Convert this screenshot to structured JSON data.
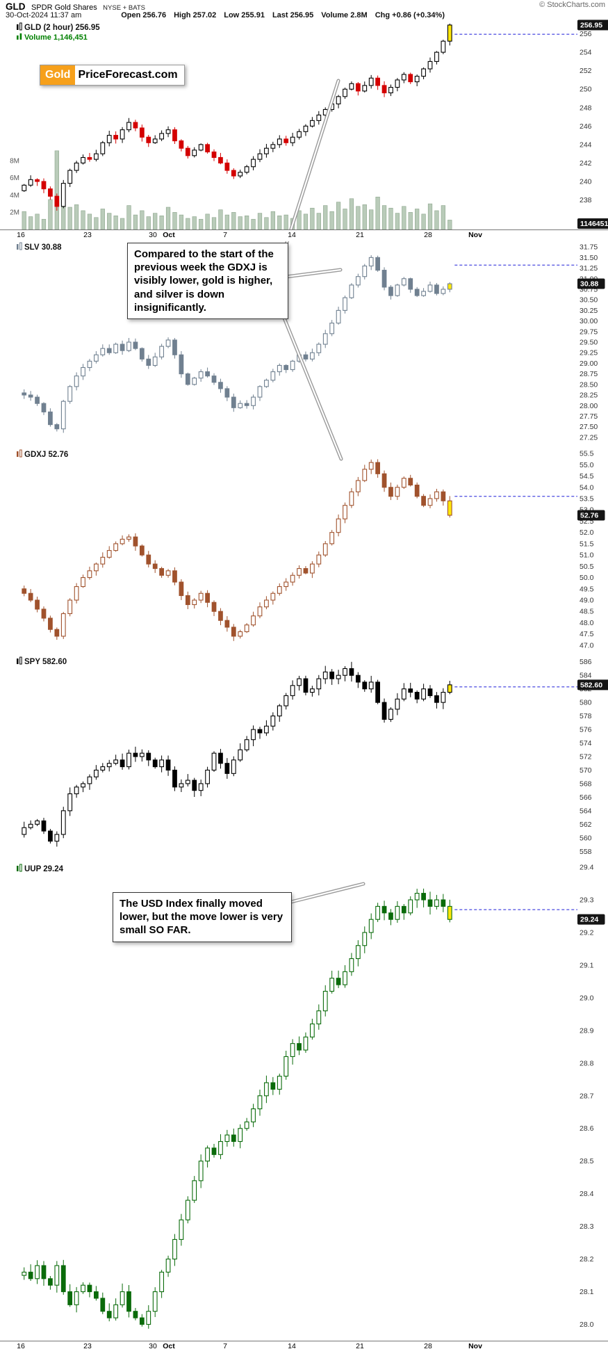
{
  "header": {
    "symbol": "GLD",
    "name": "SPDR Gold Shares",
    "exchange": "NYSE + BATS",
    "copyright": "© StockCharts.com",
    "datetime": "30-Oct-2024 11:37 am",
    "quote_fields": [
      {
        "label": "Open",
        "value": "256.76"
      },
      {
        "label": "High",
        "value": "257.02"
      },
      {
        "label": "Low",
        "value": "255.91"
      },
      {
        "label": "Last",
        "value": "256.95"
      },
      {
        "label": "Volume",
        "value": "2.8M"
      },
      {
        "label": "Chg",
        "value": "+0.86 (+0.34%)"
      }
    ]
  },
  "watermark": {
    "gold": "Gold",
    "rest": "PriceForecast.com"
  },
  "annotations": {
    "slv_note": "Compared to the start of the previous week the GDXJ is visibly lower, gold is higher, and silver is down insignificantly.",
    "uup_note": "The USD Index finally moved lower, but the move lower is very small SO FAR."
  },
  "x_axis": {
    "labels": [
      "16",
      "23",
      "30",
      "Oct",
      "7",
      "14",
      "21",
      "28",
      "Nov"
    ]
  },
  "colors": {
    "highlight": "#ffe70a",
    "dashed": "#4a4ae0",
    "label_box": "#151515",
    "volume_fill": "#b9cbb9",
    "volume_stroke": "#8ca58c",
    "volume_text": "#008000"
  },
  "chart_data": [
    {
      "type": "candlestick",
      "symbol": "GLD",
      "title": "GLD (2 hour) 256.95",
      "subtitle": "Volume 1,146,451",
      "last_label": "256.95",
      "volume_label": "1146451",
      "color": "#000000",
      "down_color": "#d40000",
      "ylim": [
        234.8,
        257.4
      ],
      "yticks": [
        256,
        254,
        252,
        250,
        248,
        246,
        244,
        242,
        240,
        238
      ],
      "dashed_level": 255.95,
      "open_first": 239.0,
      "closes": [
        239.6,
        240.2,
        240.0,
        239.2,
        238.4,
        237.3,
        239.8,
        241.2,
        242.0,
        242.6,
        242.4,
        243.0,
        244.2,
        245.0,
        244.6,
        245.6,
        246.4,
        245.8,
        244.8,
        244.2,
        244.6,
        245.2,
        245.6,
        244.4,
        243.6,
        242.8,
        243.4,
        244.0,
        243.2,
        242.6,
        242.0,
        241.2,
        240.6,
        241.0,
        241.6,
        242.4,
        243.0,
        243.6,
        244.0,
        244.6,
        244.2,
        244.8,
        245.4,
        246.0,
        246.6,
        247.2,
        247.8,
        248.4,
        249.2,
        250.0,
        250.6,
        249.8,
        250.4,
        251.2,
        250.4,
        249.6,
        250.2,
        251.0,
        251.6,
        250.8,
        251.4,
        252.2,
        253.0,
        254.0,
        255.2,
        256.95
      ],
      "volume_m": [
        2.1,
        1.5,
        1.8,
        1.2,
        3.5,
        9.2,
        4.1,
        2.6,
        2.9,
        2.2,
        1.8,
        1.4,
        2.4,
        1.9,
        1.6,
        1.3,
        2.8,
        1.7,
        2.2,
        1.5,
        1.9,
        1.6,
        2.6,
        2.0,
        1.7,
        1.3,
        1.5,
        1.2,
        1.8,
        1.4,
        2.3,
        1.7,
        2.0,
        1.5,
        1.6,
        1.2,
        1.9,
        1.4,
        2.1,
        1.6,
        1.7,
        1.3,
        2.2,
        1.8,
        2.5,
        1.9,
        2.8,
        2.1,
        3.2,
        2.4,
        3.6,
        2.7,
        2.9,
        2.3,
        3.8,
        2.8,
        2.5,
        1.9,
        2.7,
        2.0,
        2.4,
        1.8,
        3.0,
        2.2,
        2.8,
        1.1
      ],
      "volume_ticks": [
        {
          "label": "8M",
          "m": 8
        },
        {
          "label": "6M",
          "m": 6
        },
        {
          "label": "4M",
          "m": 4
        },
        {
          "label": "2M",
          "m": 2
        }
      ]
    },
    {
      "type": "candlestick",
      "symbol": "SLV",
      "title": "SLV 30.88",
      "last_label": "30.88",
      "color": "#708090",
      "ylim": [
        27.1,
        31.9
      ],
      "yticks": [
        31.75,
        31.5,
        31.25,
        31.0,
        30.75,
        30.5,
        30.25,
        30.0,
        29.75,
        29.5,
        29.25,
        29.0,
        28.75,
        28.5,
        28.25,
        28.0,
        27.75,
        27.5,
        27.25
      ],
      "dashed_level": 31.32,
      "open_first": 28.3,
      "closes": [
        28.25,
        28.2,
        28.05,
        27.85,
        27.55,
        27.45,
        28.1,
        28.45,
        28.7,
        28.9,
        29.05,
        29.2,
        29.35,
        29.25,
        29.45,
        29.3,
        29.5,
        29.35,
        29.1,
        28.95,
        29.15,
        29.4,
        29.55,
        29.2,
        28.75,
        28.5,
        28.65,
        28.8,
        28.7,
        28.55,
        28.4,
        28.2,
        27.95,
        28.05,
        28.0,
        28.2,
        28.45,
        28.6,
        28.8,
        28.95,
        28.85,
        29.05,
        29.2,
        29.1,
        29.25,
        29.45,
        29.7,
        29.95,
        30.25,
        30.55,
        30.85,
        31.05,
        31.3,
        31.5,
        31.2,
        30.8,
        30.6,
        30.85,
        31.0,
        30.75,
        30.6,
        30.7,
        30.85,
        30.65,
        30.75,
        30.88
      ]
    },
    {
      "type": "candlestick",
      "symbol": "GDXJ",
      "title": "GDXJ 52.76",
      "last_label": "52.76",
      "color": "#a0522d",
      "ylim": [
        46.75,
        55.75
      ],
      "yticks": [
        55.5,
        55.0,
        54.5,
        54.0,
        53.5,
        53.0,
        52.5,
        52.0,
        51.5,
        51.0,
        50.5,
        50.0,
        49.5,
        49.0,
        48.5,
        48.0,
        47.5,
        47.0
      ],
      "dashed_level": 53.6,
      "open_first": 49.5,
      "closes": [
        49.3,
        49.0,
        48.6,
        48.2,
        47.7,
        47.4,
        48.4,
        49.0,
        49.6,
        50.0,
        50.3,
        50.6,
        50.9,
        51.2,
        51.5,
        51.7,
        51.8,
        51.4,
        51.0,
        50.6,
        50.4,
        50.1,
        50.3,
        49.8,
        49.2,
        48.8,
        49.0,
        49.3,
        48.9,
        48.5,
        48.1,
        47.8,
        47.4,
        47.6,
        47.9,
        48.3,
        48.7,
        49.0,
        49.3,
        49.6,
        49.8,
        50.1,
        50.4,
        50.2,
        50.6,
        51.0,
        51.5,
        52.0,
        52.6,
        53.2,
        53.8,
        54.3,
        54.8,
        55.1,
        54.6,
        54.0,
        53.6,
        54.0,
        54.4,
        54.1,
        53.6,
        53.2,
        53.5,
        53.8,
        53.4,
        52.76
      ]
    },
    {
      "type": "candlestick",
      "symbol": "SPY",
      "title": "SPY 582.60",
      "last_label": "582.60",
      "color": "#000000",
      "ylim": [
        557,
        587
      ],
      "yticks": [
        586,
        584,
        582,
        580,
        578,
        576,
        574,
        572,
        570,
        568,
        566,
        564,
        562,
        560,
        558
      ],
      "dashed_level": 582.3,
      "open_first": 560.5,
      "closes": [
        561.5,
        562.0,
        562.5,
        561.0,
        559.5,
        560.5,
        564.0,
        566.5,
        567.5,
        568.0,
        569.0,
        570.0,
        570.5,
        571.0,
        571.5,
        570.5,
        572.5,
        572.0,
        572.5,
        571.5,
        570.5,
        571.5,
        570.0,
        567.5,
        568.0,
        568.5,
        567.0,
        568.0,
        570.0,
        572.5,
        571.0,
        569.5,
        571.5,
        573.0,
        574.5,
        576.0,
        575.5,
        576.5,
        578.0,
        579.5,
        581.0,
        582.5,
        583.5,
        581.5,
        582.0,
        583.5,
        584.5,
        583.5,
        584.0,
        585.0,
        584.0,
        583.0,
        582.0,
        583.0,
        580.0,
        577.5,
        579.0,
        580.5,
        582.0,
        581.5,
        580.5,
        582.0,
        581.0,
        580.0,
        581.5,
        582.6
      ]
    },
    {
      "type": "candlestick",
      "symbol": "UUP",
      "title": "UUP 29.24",
      "last_label": "29.24",
      "color": "#0a6b0a",
      "ylim": [
        27.95,
        29.415
      ],
      "yticks": [
        29.4,
        29.3,
        29.2,
        29.1,
        29.0,
        28.9,
        28.8,
        28.7,
        28.6,
        28.5,
        28.4,
        28.3,
        28.2,
        28.1,
        28.0
      ],
      "dashed_level": 29.27,
      "open_first": 28.15,
      "closes": [
        28.16,
        28.14,
        28.18,
        28.14,
        28.12,
        28.18,
        28.1,
        28.06,
        28.1,
        28.12,
        28.1,
        28.08,
        28.04,
        28.02,
        28.06,
        28.1,
        28.04,
        28.02,
        28.0,
        28.04,
        28.1,
        28.16,
        28.2,
        28.26,
        28.32,
        28.38,
        28.44,
        28.5,
        28.54,
        28.52,
        28.56,
        28.58,
        28.56,
        28.6,
        28.62,
        28.66,
        28.7,
        28.74,
        28.72,
        28.76,
        28.82,
        28.86,
        28.84,
        28.88,
        28.92,
        28.96,
        29.02,
        29.06,
        29.04,
        29.08,
        29.12,
        29.16,
        29.2,
        29.24,
        29.28,
        29.26,
        29.24,
        29.28,
        29.26,
        29.3,
        29.32,
        29.3,
        29.28,
        29.3,
        29.28,
        29.24
      ]
    }
  ]
}
